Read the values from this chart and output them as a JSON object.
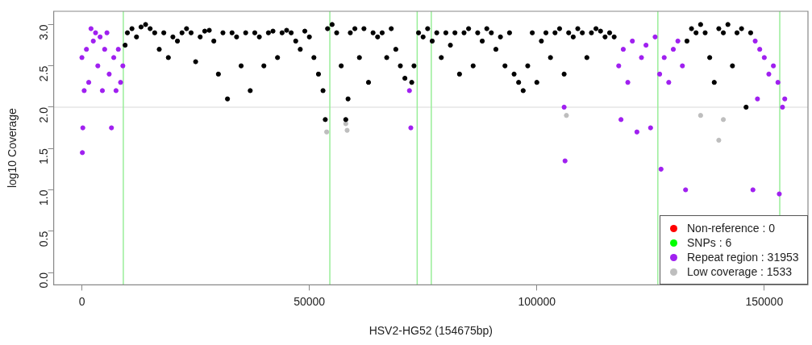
{
  "chart_data": {
    "type": "scatter",
    "xlabel": "HSV2-HG52 (154675bp)",
    "ylabel": "log10 Coverage",
    "xlim": [
      -6200,
      159600
    ],
    "ylim": [
      -0.15,
      3.16
    ],
    "xticks": [
      0,
      50000,
      100000,
      150000
    ],
    "yticks": [
      {
        "value": 0,
        "label": "0.0"
      },
      0.5,
      {
        "value": 1,
        "label": "1.0"
      },
      1.5,
      {
        "value": 2,
        "label": "2.0"
      },
      2.5,
      {
        "value": 3,
        "label": "3.0"
      }
    ],
    "grid": false,
    "legend": "bottom right",
    "marker": "circle",
    "ref_lines": [
      {
        "axis": "y",
        "value": 2,
        "color": "#e6e6e6"
      },
      {
        "axis": "x",
        "value": 9100,
        "color": "#99ee99"
      },
      {
        "axis": "x",
        "value": 54500,
        "color": "#99ee99"
      },
      {
        "axis": "x",
        "value": 73700,
        "color": "#99ee99"
      },
      {
        "axis": "x",
        "value": 76800,
        "color": "#99ee99"
      },
      {
        "axis": "x",
        "value": 126600,
        "color": "#99ee99"
      },
      {
        "axis": "x",
        "value": 153400,
        "color": "#99ee99"
      }
    ],
    "series": [
      {
        "color": "#000000",
        "x": [
          9500,
          10000,
          11000,
          12000,
          13000,
          14000,
          15000,
          16000,
          17000,
          18000,
          19000,
          20000,
          21000,
          22000,
          23000,
          24000,
          25000,
          26000,
          27000,
          28000,
          29000,
          30000,
          31000,
          32000,
          33000,
          34000,
          35000,
          36000,
          37000,
          38000,
          39000,
          40000,
          41000,
          42000,
          43000,
          44000,
          45000,
          46000,
          47000,
          48000,
          49000,
          50000,
          51000,
          52000,
          53000,
          53500,
          54000,
          55000,
          56000,
          57000,
          58000,
          58500,
          59000,
          60000,
          61000,
          62000,
          63000,
          64000,
          65000,
          66000,
          67000,
          68000,
          69000,
          70000,
          71000,
          72500,
          73000,
          74000,
          75000,
          76000,
          77000,
          78000,
          79000,
          80000,
          81000,
          82000,
          83000,
          84000,
          85000,
          86000,
          87000,
          88000,
          89000,
          90000,
          91000,
          92000,
          93000,
          94000,
          95000,
          96000,
          97000,
          98000,
          99000,
          100000,
          101000,
          102000,
          103000,
          104000,
          105000,
          106000,
          107000,
          108000,
          109000,
          110000,
          111000,
          112000,
          113000,
          114000,
          115000,
          116000,
          117000,
          133000,
          134000,
          135000,
          136000,
          137000,
          138000,
          139000,
          140000,
          141000,
          142000,
          143000,
          144000,
          145000,
          146000,
          147000
        ],
        "values": [
          2.75,
          2.9,
          2.95,
          2.85,
          2.97,
          3.0,
          2.95,
          2.9,
          2.7,
          2.9,
          2.6,
          2.85,
          2.8,
          2.9,
          2.95,
          2.9,
          2.55,
          2.85,
          2.92,
          2.93,
          2.8,
          2.4,
          2.9,
          2.1,
          2.9,
          2.85,
          2.5,
          2.9,
          2.2,
          2.9,
          2.85,
          2.5,
          2.9,
          2.92,
          2.6,
          2.9,
          2.93,
          2.9,
          2.8,
          2.7,
          2.92,
          2.85,
          2.6,
          2.4,
          2.2,
          1.85,
          2.95,
          3.0,
          2.9,
          2.5,
          1.85,
          2.1,
          2.9,
          2.95,
          2.6,
          2.95,
          2.3,
          2.9,
          2.85,
          2.9,
          2.6,
          2.95,
          2.7,
          2.5,
          2.35,
          2.3,
          2.5,
          2.9,
          2.85,
          2.95,
          2.8,
          2.9,
          2.6,
          2.9,
          2.75,
          2.9,
          2.4,
          2.9,
          2.95,
          2.5,
          2.9,
          2.8,
          2.95,
          2.9,
          2.7,
          2.85,
          2.5,
          2.9,
          2.4,
          2.3,
          2.2,
          2.5,
          2.9,
          2.3,
          2.8,
          2.9,
          2.6,
          2.9,
          2.95,
          2.4,
          2.9,
          2.85,
          2.95,
          2.9,
          2.6,
          2.9,
          2.95,
          2.92,
          2.85,
          2.9,
          2.85,
          2.8,
          2.95,
          2.9,
          3.0,
          2.9,
          2.6,
          2.3,
          2.95,
          2.9,
          3.0,
          2.5,
          2.9,
          2.95,
          2.0,
          2.9
        ]
      },
      {
        "name": "Non-reference : 0",
        "color": "#ff0000"
      },
      {
        "name": "SNPs : 6",
        "color": "#00ff00"
      },
      {
        "name": "Repeat region : 31953",
        "color": "#a020f0",
        "x": [
          0,
          100,
          200,
          500,
          1000,
          1500,
          2000,
          2500,
          3000,
          3500,
          4000,
          4500,
          5000,
          5500,
          6000,
          6500,
          7000,
          7500,
          8000,
          8500,
          9000,
          72000,
          72300,
          106000,
          106200,
          118000,
          118500,
          119000,
          120000,
          121000,
          122000,
          123000,
          124000,
          125000,
          126000,
          127000,
          127300,
          128000,
          129000,
          130000,
          131000,
          132000,
          132700,
          147500,
          148000,
          148500,
          149000,
          150000,
          151000,
          152000,
          153000,
          153300,
          154000,
          154500
        ],
        "values": [
          2.6,
          1.45,
          1.75,
          2.2,
          2.7,
          2.3,
          2.95,
          2.8,
          2.9,
          2.5,
          2.85,
          2.2,
          2.7,
          2.9,
          2.4,
          1.75,
          2.6,
          2.2,
          2.7,
          2.3,
          2.5,
          2.2,
          1.75,
          2.0,
          1.35,
          2.5,
          1.85,
          2.7,
          2.3,
          2.8,
          1.7,
          2.6,
          2.75,
          1.75,
          2.85,
          2.4,
          1.25,
          2.6,
          2.3,
          2.7,
          2.8,
          2.5,
          1.0,
          1.0,
          2.8,
          2.1,
          2.7,
          2.6,
          2.4,
          2.5,
          2.3,
          0.95,
          2.0,
          2.1
        ]
      },
      {
        "name": "Low coverage : 1533",
        "color": "#bebebe",
        "x": [
          53800,
          58000,
          58300,
          106500,
          136000,
          140000,
          141000
        ],
        "values": [
          1.7,
          1.8,
          1.72,
          1.9,
          1.9,
          1.6,
          1.85
        ]
      }
    ]
  }
}
